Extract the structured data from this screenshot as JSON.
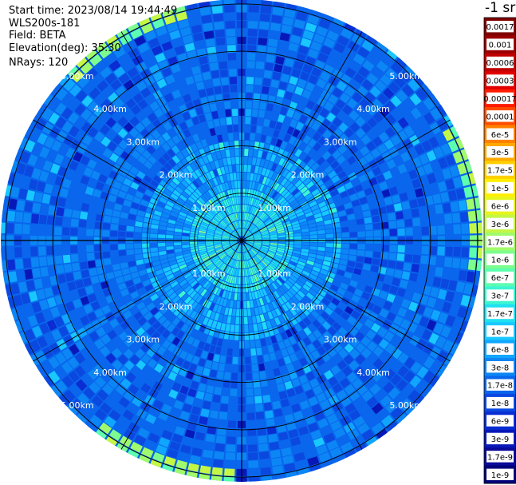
{
  "header": {
    "start_time": "Start time: 2023/08/14 19:44:49",
    "device": "WLS200s-181",
    "field": "Field: BETA",
    "elevation": "Elevation(deg): 35.30",
    "nrays": "NRays: 120"
  },
  "colorbar": {
    "unit_label": "-1 sr",
    "labels": [
      "0.0017",
      "0.001",
      "0.0006",
      "0.0003",
      "0.00017",
      "0.0001",
      "6e-5",
      "3e-5",
      "1.7e-5",
      "1e-5",
      "6e-6",
      "3e-6",
      "1.7e-6",
      "1e-6",
      "6e-7",
      "3e-7",
      "1.7e-7",
      "1e-7",
      "6e-8",
      "3e-8",
      "1.7e-8",
      "1e-8",
      "6e-9",
      "3e-9",
      "1.7e-9",
      "1e-9"
    ],
    "colors": [
      "#7f0000",
      "#9a0000",
      "#c00000",
      "#e00000",
      "#ff1a00",
      "#ff4d00",
      "#ff8000",
      "#ffa800",
      "#ffd000",
      "#ffee00",
      "#e6f51e",
      "#c4f745",
      "#a0fb6c",
      "#7dfd8e",
      "#5cfdb0",
      "#3cf5d2",
      "#20e0f0",
      "#18c8ff",
      "#10a6ff",
      "#0c86f5",
      "#0a66ec",
      "#0a48e0",
      "#0a2cd2",
      "#0818b8",
      "#0a0a9a",
      "#00007a"
    ]
  },
  "chart_data": {
    "type": "heatmap",
    "projection": "polar-ppi",
    "field": "BETA",
    "elevation_deg": 35.3,
    "n_rays": 120,
    "range_rings_km": [
      1,
      2,
      3,
      4,
      5
    ],
    "ring_labels": [
      "1.00km",
      "2.00km",
      "3.00km",
      "4.00km",
      "5.00km"
    ],
    "max_range_km": 5.1,
    "value_range": [
      1e-09,
      0.0017
    ],
    "dominant_value": "1e-8 to 1e-7",
    "near_range_value": "1e-7 to 6e-7",
    "edge_maxima": [
      {
        "azimuth_deg": 330,
        "value": 3e-06
      },
      {
        "azimuth_deg": 200,
        "value": 1e-05
      },
      {
        "azimuth_deg": 80,
        "value": 1.7e-05
      }
    ]
  }
}
